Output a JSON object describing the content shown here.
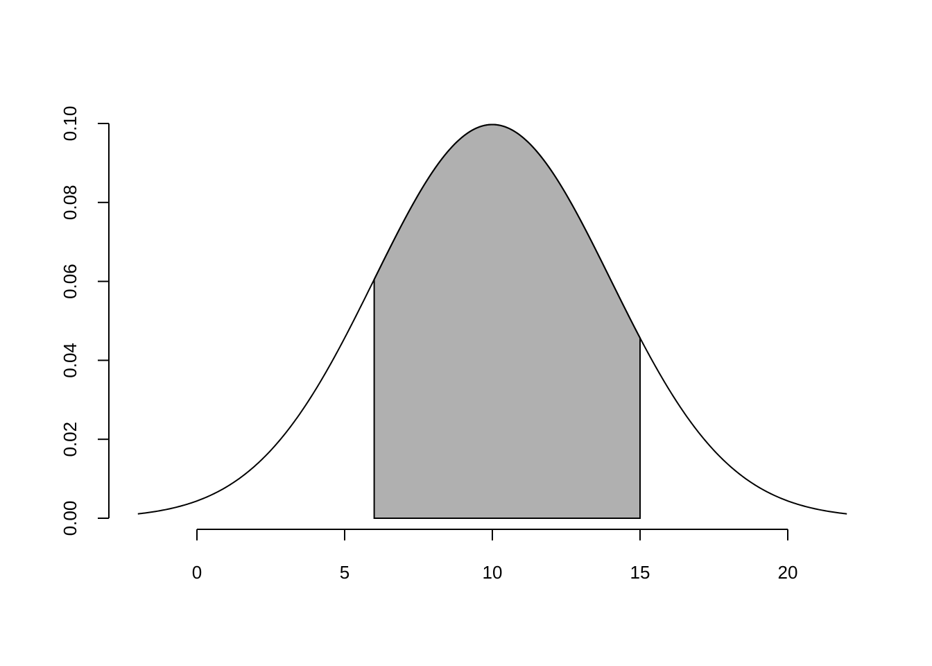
{
  "chart_data": {
    "type": "area",
    "title": "",
    "xlabel": "",
    "ylabel": "",
    "curve": {
      "function": "normal density",
      "mean": 10,
      "sd": 4,
      "x_range": [
        -2,
        22
      ],
      "color": "#000000"
    },
    "shaded_region": {
      "x_from": 6,
      "x_to": 15,
      "fill": "#b0b0b0",
      "border": "#000000"
    },
    "xlim": [
      -2,
      22
    ],
    "ylim": [
      0,
      0.1
    ],
    "x_ticks": [
      0,
      5,
      10,
      15,
      20
    ],
    "x_tick_labels": [
      "0",
      "5",
      "10",
      "15",
      "20"
    ],
    "y_ticks": [
      0,
      0.02,
      0.04,
      0.06,
      0.08,
      0.1
    ],
    "y_tick_labels": [
      "0.00",
      "0.02",
      "0.04",
      "0.06",
      "0.08",
      "0.10"
    ],
    "grid": false,
    "legend": "none"
  }
}
